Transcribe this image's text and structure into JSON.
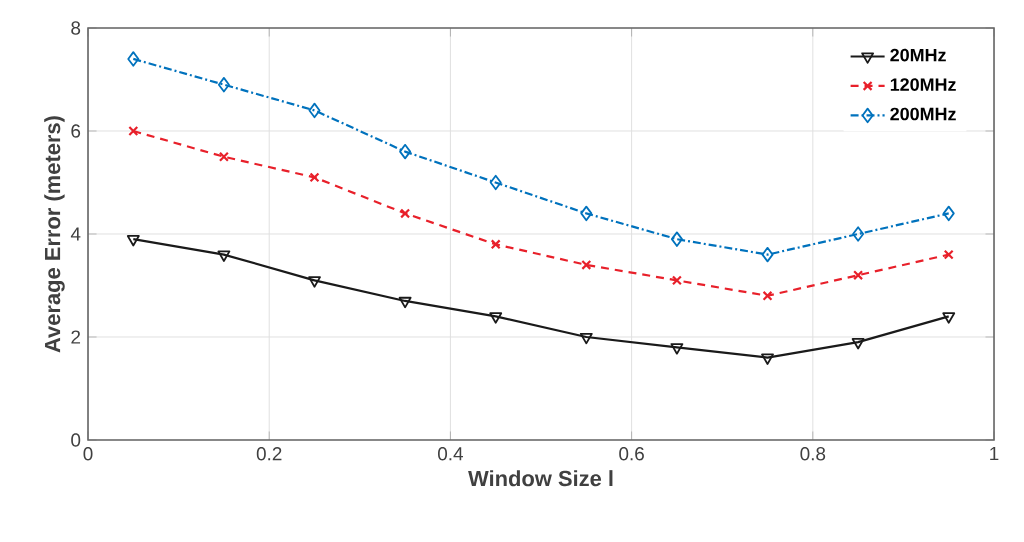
{
  "chart_data": {
    "type": "line",
    "xlabel": "Window Size l",
    "ylabel": "Average Error (meters)",
    "x": [
      0.05,
      0.15,
      0.25,
      0.35,
      0.45,
      0.55,
      0.65,
      0.75,
      0.85,
      0.95
    ],
    "series": [
      {
        "name": "20MHz",
        "color": "#1a1a1a",
        "marker": "triangle",
        "line_style": "solid",
        "values": [
          3.9,
          3.6,
          3.1,
          2.7,
          2.4,
          2.0,
          1.8,
          1.6,
          1.9,
          2.4
        ]
      },
      {
        "name": "120MHz",
        "color": "#e8202a",
        "marker": "cross",
        "line_style": "dashed",
        "values": [
          6.0,
          5.5,
          5.1,
          4.4,
          3.8,
          3.4,
          3.1,
          2.8,
          3.2,
          3.6
        ]
      },
      {
        "name": "200MHz",
        "color": "#0072bd",
        "marker": "diamond",
        "line_style": "dashdot",
        "values": [
          7.4,
          6.9,
          6.4,
          5.6,
          5.0,
          4.4,
          3.9,
          3.6,
          4.0,
          4.4
        ]
      }
    ],
    "xlim": [
      0,
      1
    ],
    "ylim": [
      0,
      8
    ],
    "xticks": [
      0,
      0.2,
      0.4,
      0.6,
      0.8,
      1
    ],
    "yticks": [
      0,
      2,
      4,
      6,
      8
    ],
    "grid": true,
    "legend": "top right"
  }
}
